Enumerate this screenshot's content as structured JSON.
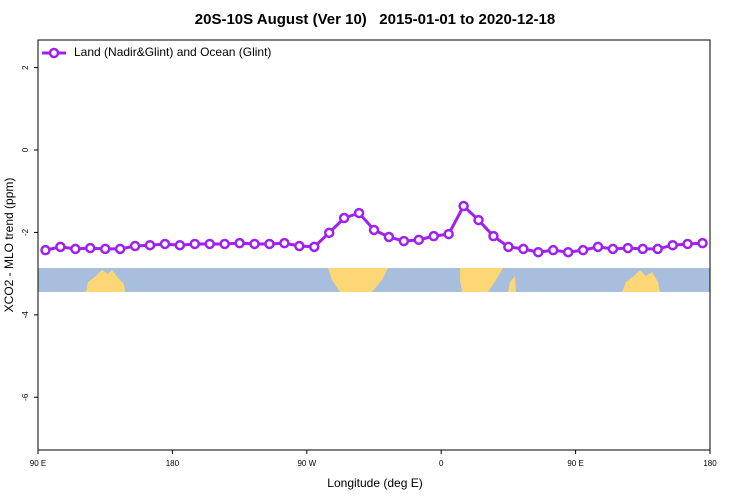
{
  "chart_data": {
    "type": "line",
    "title": "20S-10S August (Ver 10)   2015-01-01 to 2020-12-18",
    "x_label": "Longitude (deg E)",
    "y_label": "XCO2 - MLO trend (ppm)",
    "xlim": [
      90,
      540
    ],
    "xticks": [
      {
        "value": 90,
        "label": "90 E"
      },
      {
        "value": 180,
        "label": "180"
      },
      {
        "value": 270,
        "label": "90 W"
      },
      {
        "value": 360,
        "label": "0"
      },
      {
        "value": 450,
        "label": "90 E"
      },
      {
        "value": 540,
        "label": "180"
      }
    ],
    "ylim": [
      -7.28,
      2.67
    ],
    "yticks": [
      -6,
      -4,
      -2,
      0,
      2
    ],
    "legend": "top-left",
    "x": [
      95,
      105,
      115,
      125,
      135,
      145,
      155,
      165,
      175,
      185,
      195,
      205,
      215,
      225,
      235,
      245,
      255,
      265,
      275,
      285,
      295,
      305,
      315,
      325,
      335,
      345,
      355,
      365,
      375,
      385,
      395,
      405,
      415,
      425,
      435,
      445,
      455,
      465,
      475,
      485,
      495,
      505,
      515,
      525,
      535
    ],
    "series": [
      {
        "name": "Land (Nadir&Glint) and Ocean (Glint)",
        "color": "#a020f0",
        "values": [
          -2.43,
          -2.35,
          -2.4,
          -2.38,
          -2.4,
          -2.4,
          -2.33,
          -2.31,
          -2.28,
          -2.31,
          -2.28,
          -2.28,
          -2.28,
          -2.26,
          -2.28,
          -2.28,
          -2.26,
          -2.33,
          -2.35,
          -2.01,
          -1.65,
          -1.53,
          -1.94,
          -2.11,
          -2.21,
          -2.18,
          -2.09,
          -2.04,
          -1.36,
          -1.7,
          -2.09,
          -2.35,
          -2.4,
          -2.48,
          -2.43,
          -2.48,
          -2.43,
          -2.35,
          -2.4,
          -2.38,
          -2.4,
          -2.4,
          -2.31,
          -2.28,
          -2.26
        ]
      }
    ]
  }
}
